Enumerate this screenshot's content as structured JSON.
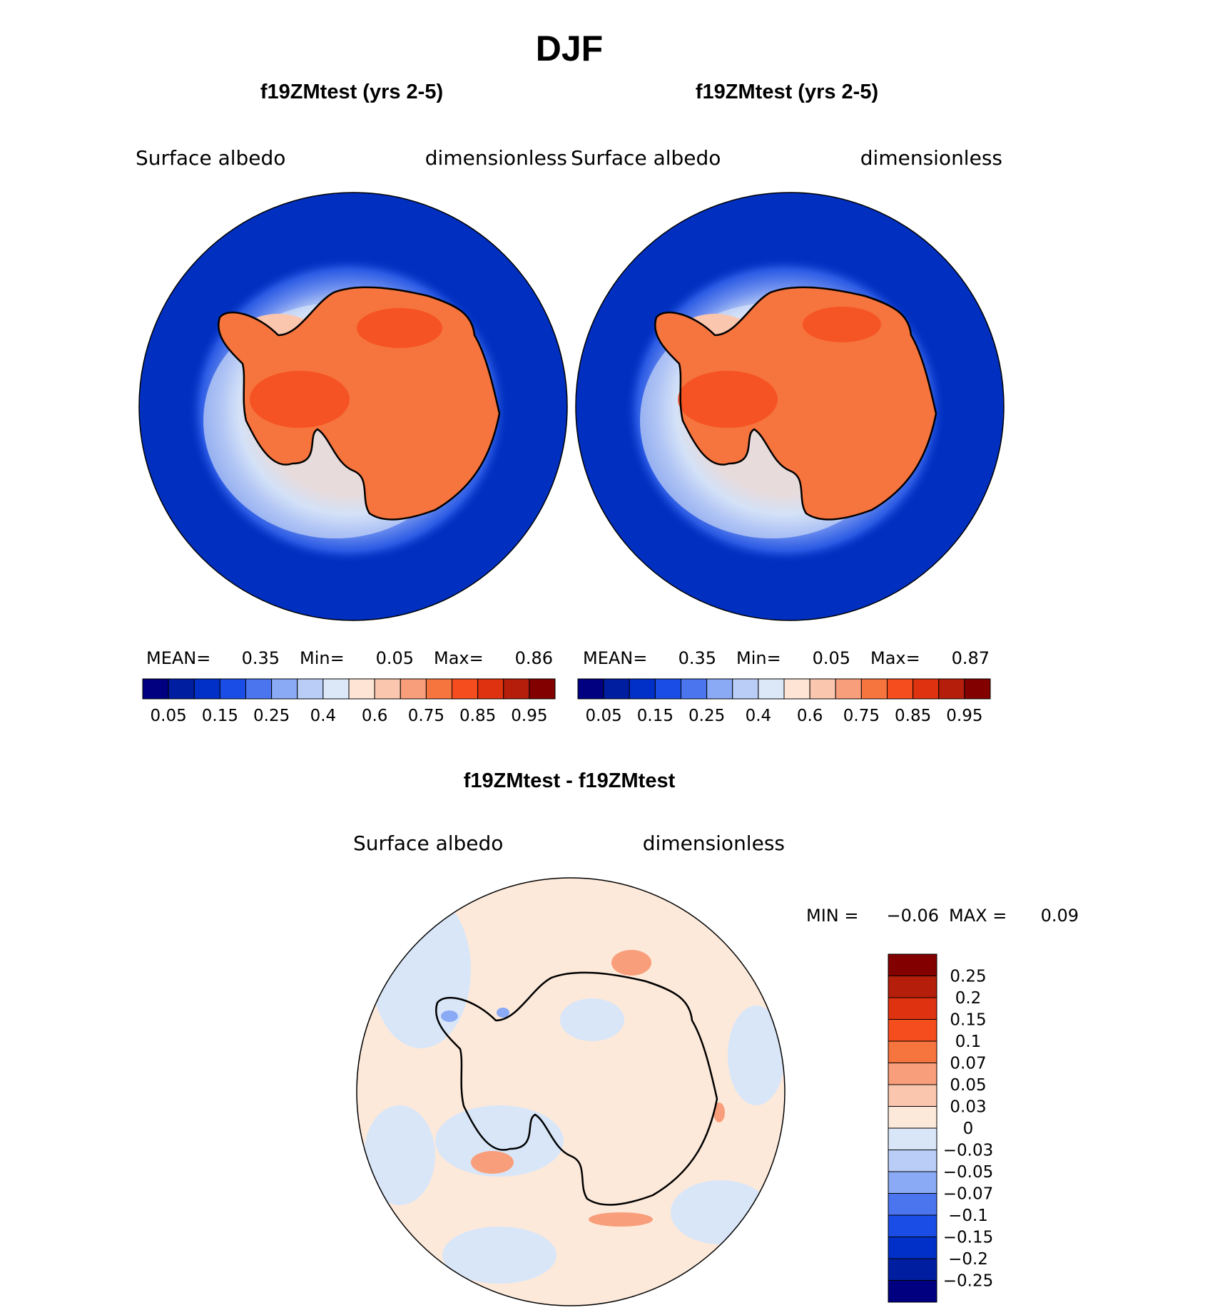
{
  "figure_title": "DJF",
  "chart_data": [
    {
      "type": "heatmap",
      "title": "f19ZMtest (yrs 2-5)",
      "left_label": "Surface  albedo",
      "right_label": "dimensionless",
      "stats": {
        "mean_label": "MEAN=",
        "mean": "0.35",
        "min_label": "Min=",
        "min": "0.05",
        "max_label": "Max=",
        "max": "0.86"
      },
      "colorbar_ticks": [
        "0.05",
        "0.15",
        "0.25",
        "0.4",
        "0.6",
        "0.75",
        "0.85",
        "0.95"
      ],
      "colorbar_colors": [
        "#000080",
        "#001ea0",
        "#0030c8",
        "#1a4de6",
        "#4a75ee",
        "#8aaaf5",
        "#b9cdf7",
        "#dce8f8",
        "#fde4d4",
        "#fbc6ae",
        "#f89e7a",
        "#f6743e",
        "#f54d1e",
        "#de3210",
        "#b41e0a",
        "#820000"
      ]
    },
    {
      "type": "heatmap",
      "title": "f19ZMtest (yrs 2-5)",
      "left_label": "Surface  albedo",
      "right_label": "dimensionless",
      "stats": {
        "mean_label": "MEAN=",
        "mean": "0.35",
        "min_label": "Min=",
        "min": "0.05",
        "max_label": "Max=",
        "max": "0.87"
      },
      "colorbar_ticks": [
        "0.05",
        "0.15",
        "0.25",
        "0.4",
        "0.6",
        "0.75",
        "0.85",
        "0.95"
      ],
      "colorbar_colors": [
        "#000080",
        "#001ea0",
        "#0030c8",
        "#1a4de6",
        "#4a75ee",
        "#8aaaf5",
        "#b9cdf7",
        "#dce8f8",
        "#fde4d4",
        "#fbc6ae",
        "#f89e7a",
        "#f6743e",
        "#f54d1e",
        "#de3210",
        "#b41e0a",
        "#820000"
      ]
    },
    {
      "type": "heatmap",
      "title": "f19ZMtest - f19ZMtest",
      "left_label": "Surface  albedo",
      "right_label": "dimensionless",
      "stats": {
        "min_label": "MIN  =",
        "min": "−0.06",
        "max_label": "MAX  =",
        "max": "0.09"
      },
      "colorbar_ticks": [
        "0.25",
        "0.2",
        "0.15",
        "0.1",
        "0.07",
        "0.05",
        "0.03",
        "0",
        "−0.03",
        "−0.05",
        "−0.07",
        "−0.1",
        "−0.15",
        "−0.2",
        "−0.25"
      ],
      "colorbar_colors": [
        "#820000",
        "#b41e0a",
        "#de3210",
        "#f54d1e",
        "#f6743e",
        "#f89e7a",
        "#fbc6ae",
        "#fde9da",
        "#d8e6f8",
        "#b9cdf7",
        "#8aaaf5",
        "#4a75ee",
        "#1a4de6",
        "#0030c8",
        "#001ea0",
        "#000080"
      ]
    }
  ],
  "colors": {
    "ocean": "#0130c0",
    "ice_high": "#f6743e",
    "ice_peak": "#f54d1e",
    "diff_pos": "#fde9da",
    "diff_neg": "#d8e6f8"
  }
}
